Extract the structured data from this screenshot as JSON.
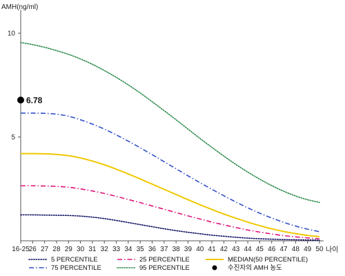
{
  "chart_data": {
    "type": "line",
    "ylabel": "AMH(ng/ml)",
    "xlabel": "나이",
    "ylim": [
      0,
      11
    ],
    "yticks": [
      "5",
      "10"
    ],
    "ytick_values": [
      5,
      10
    ],
    "categories": [
      "16-25",
      "26",
      "27",
      "28",
      "29",
      "30",
      "31",
      "32",
      "33",
      "34",
      "35",
      "36",
      "37",
      "38",
      "39",
      "40",
      "41",
      "42",
      "43",
      "44",
      "45",
      "46",
      "47",
      "48",
      "49",
      "50"
    ],
    "series": [
      {
        "name": "5 PERCENTILE",
        "color": "#0a0a60",
        "style": "dotted",
        "values": [
          1.25,
          1.25,
          1.24,
          1.23,
          1.22,
          1.19,
          1.14,
          1.07,
          0.98,
          0.88,
          0.78,
          0.68,
          0.58,
          0.49,
          0.41,
          0.34,
          0.27,
          0.22,
          0.17,
          0.13,
          0.1,
          0.08,
          0.06,
          0.05,
          0.04,
          0.03
        ]
      },
      {
        "name": "25 PERCENTILE",
        "color": "#e0147a",
        "style": "dashdot",
        "values": [
          2.65,
          2.65,
          2.64,
          2.62,
          2.58,
          2.5,
          2.4,
          2.28,
          2.14,
          1.99,
          1.84,
          1.68,
          1.52,
          1.36,
          1.2,
          1.05,
          0.9,
          0.77,
          0.64,
          0.52,
          0.42,
          0.33,
          0.25,
          0.19,
          0.14,
          0.1
        ]
      },
      {
        "name": "MEDIAN(50 PERCENTILE)",
        "color": "#f0c800",
        "style": "solid",
        "values": [
          4.2,
          4.2,
          4.19,
          4.16,
          4.1,
          3.99,
          3.84,
          3.66,
          3.45,
          3.22,
          2.98,
          2.73,
          2.48,
          2.23,
          1.98,
          1.74,
          1.51,
          1.29,
          1.09,
          0.9,
          0.73,
          0.58,
          0.45,
          0.35,
          0.26,
          0.2
        ]
      },
      {
        "name": "75 PERCENTILE",
        "color": "#3050c8",
        "style": "dashdot",
        "values": [
          6.15,
          6.15,
          6.14,
          6.1,
          6.0,
          5.83,
          5.62,
          5.38,
          5.1,
          4.8,
          4.48,
          4.15,
          3.81,
          3.47,
          3.13,
          2.8,
          2.48,
          2.17,
          1.87,
          1.59,
          1.33,
          1.1,
          0.89,
          0.71,
          0.56,
          0.44
        ]
      },
      {
        "name": "95 PERCENTILE",
        "color": "#2a8a4a",
        "style": "dotted",
        "values": [
          9.55,
          9.45,
          9.32,
          9.16,
          8.98,
          8.76,
          8.5,
          8.2,
          7.87,
          7.51,
          7.12,
          6.7,
          6.27,
          5.83,
          5.38,
          4.93,
          4.5,
          4.08,
          3.68,
          3.31,
          2.97,
          2.66,
          2.39,
          2.16,
          1.98,
          1.85
        ]
      }
    ],
    "marker": {
      "x": "16-25",
      "value": 6.78,
      "label": "6.78",
      "color": "#000000",
      "legend_name": "수진자의 AMH 농도"
    },
    "legend_order": [
      "5 PERCENTILE",
      "25 PERCENTILE",
      "MEDIAN(50 PERCENTILE)",
      "75 PERCENTILE",
      "95 PERCENTILE",
      "수진자의 AMH 농도"
    ],
    "legend_position": "bottom",
    "grid": false
  }
}
